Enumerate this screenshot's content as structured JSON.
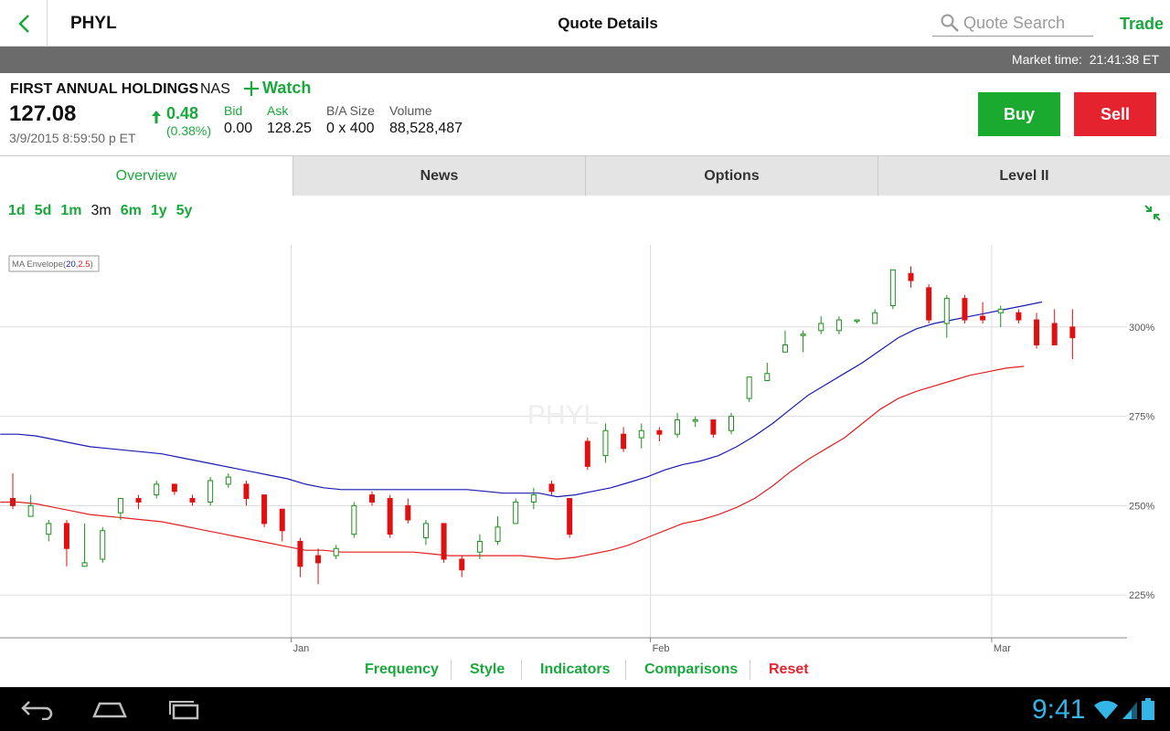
{
  "topbar": {
    "symbol": "PHYL",
    "title": "Quote Details",
    "search_placeholder": "Quote Search",
    "trade_label": "Trade"
  },
  "market": {
    "label": "Market time:",
    "time": "21:41:38 ET"
  },
  "quote": {
    "company": "FIRST ANNUAL HOLDINGS",
    "exchange": "NAS",
    "watch_label": "Watch",
    "last": "127.08",
    "timestamp": "3/9/2015 8:59:50 p ET",
    "change": "0.48",
    "change_pct": "(0.38%)",
    "bid_label": "Bid",
    "bid": "0.00",
    "ask_label": "Ask",
    "ask": "128.25",
    "ba_size_label": "B/A Size",
    "ba_size": "0 x 400",
    "volume_label": "Volume",
    "volume": "88,528,487",
    "buy_label": "Buy",
    "sell_label": "Sell"
  },
  "tabs": [
    {
      "label": "Overview",
      "active": true
    },
    {
      "label": "News",
      "active": false
    },
    {
      "label": "Options",
      "active": false
    },
    {
      "label": "Level II",
      "active": false
    }
  ],
  "ranges": [
    {
      "label": "1d",
      "selected": false
    },
    {
      "label": "5d",
      "selected": false
    },
    {
      "label": "1m",
      "selected": false
    },
    {
      "label": "3m",
      "selected": true
    },
    {
      "label": "6m",
      "selected": false
    },
    {
      "label": "1y",
      "selected": false
    },
    {
      "label": "5y",
      "selected": false
    }
  ],
  "chart_data": {
    "type": "candlestick",
    "watermark": "PHYL",
    "indicator_label": "MA Envelope(",
    "indicator_p1": "20",
    "indicator_comma": ",",
    "indicator_p2": "2.5",
    "indicator_close": ")",
    "y_ticks": [
      "300%",
      "275%",
      "250%",
      "225%"
    ],
    "y_tick_values": [
      300,
      275,
      250,
      225
    ],
    "ylim": [
      213,
      323
    ],
    "x_ticks": [
      {
        "label": "Jan",
        "index": 15.5
      },
      {
        "label": "Feb",
        "index": 35.5
      },
      {
        "label": "Mar",
        "index": 54.5
      }
    ],
    "candles": [
      [
        252,
        250,
        259,
        249
      ],
      [
        247,
        250,
        253,
        247
      ],
      [
        242,
        245,
        246,
        240
      ],
      [
        245,
        238,
        246,
        233
      ],
      [
        233,
        234,
        245,
        233
      ],
      [
        235,
        243,
        244,
        234
      ],
      [
        248,
        252,
        252,
        246
      ],
      [
        252,
        251,
        253,
        249
      ],
      [
        253,
        256,
        257,
        252
      ],
      [
        256,
        254,
        256,
        253
      ],
      [
        252,
        251,
        253,
        250
      ],
      [
        251,
        257,
        258,
        250
      ],
      [
        256,
        258,
        259,
        255
      ],
      [
        256,
        252,
        257,
        250
      ],
      [
        253,
        245,
        253,
        244
      ],
      [
        249,
        243,
        249,
        240
      ],
      [
        240,
        233,
        241,
        230
      ],
      [
        236,
        234,
        238,
        228
      ],
      [
        236,
        238,
        239,
        235
      ],
      [
        242,
        250,
        251,
        241
      ],
      [
        253,
        251,
        254,
        250
      ],
      [
        252,
        242,
        253,
        241
      ],
      [
        250,
        246,
        252,
        245
      ],
      [
        241,
        245,
        246,
        239
      ],
      [
        245,
        235,
        245,
        234
      ],
      [
        235,
        232,
        236,
        230
      ],
      [
        237,
        240,
        242,
        235
      ],
      [
        240,
        244,
        247,
        239
      ],
      [
        245,
        251,
        252,
        245
      ],
      [
        251,
        253,
        255,
        249
      ],
      [
        256,
        254,
        257,
        253
      ],
      [
        252,
        242,
        252,
        241
      ],
      [
        268,
        261,
        269,
        260
      ],
      [
        264,
        271,
        273,
        262
      ],
      [
        270,
        266,
        272,
        265
      ],
      [
        269,
        271,
        273,
        266
      ],
      [
        271,
        270,
        272,
        268
      ],
      [
        270,
        274,
        276,
        269
      ],
      [
        274,
        274,
        275,
        272
      ],
      [
        274,
        270,
        274,
        269
      ],
      [
        271,
        275,
        276,
        270
      ],
      [
        280,
        286,
        286,
        279
      ],
      [
        285,
        287,
        290,
        285
      ],
      [
        293,
        295,
        299,
        293
      ],
      [
        298,
        298,
        299,
        293
      ],
      [
        299,
        301,
        303,
        298
      ],
      [
        299,
        302,
        303,
        298
      ],
      [
        302,
        302,
        302,
        301
      ],
      [
        301,
        304,
        305,
        301
      ],
      [
        306,
        316,
        316,
        305
      ],
      [
        315,
        313,
        317,
        311
      ],
      [
        311,
        302,
        312,
        301
      ],
      [
        301,
        308,
        309,
        297
      ],
      [
        308,
        302,
        309,
        301
      ],
      [
        303,
        302,
        307,
        301
      ],
      [
        304,
        305,
        306,
        300
      ],
      [
        304,
        302,
        305,
        301
      ],
      [
        302,
        295,
        304,
        294
      ],
      [
        301,
        295,
        305,
        295
      ],
      [
        300,
        297,
        305,
        291
      ]
    ],
    "upper_envelope": [
      270,
      270,
      269.5,
      268.5,
      267.5,
      266.5,
      266,
      265.5,
      265,
      264.5,
      263.5,
      262.5,
      261.5,
      260.5,
      259.5,
      258.5,
      257.5,
      256,
      255,
      254.5,
      254.5,
      254.5,
      254.5,
      254.5,
      254.5,
      254.5,
      254.5,
      254,
      253.5,
      253.5,
      253.5,
      252.5,
      253,
      254,
      255,
      256.5,
      258,
      260,
      261.5,
      262.5,
      264,
      266.5,
      269.5,
      273,
      277,
      281,
      284,
      287,
      290,
      293.5,
      297,
      299.5,
      301,
      302,
      303,
      304,
      305,
      306,
      307
    ],
    "lower_envelope": [
      251,
      251,
      250.5,
      249.5,
      248.5,
      247.5,
      247,
      246.5,
      246,
      245.5,
      244.5,
      243.5,
      242.5,
      241.5,
      240.5,
      239.5,
      238.5,
      237.5,
      237.5,
      237,
      237,
      237,
      237,
      237,
      236.5,
      236,
      236,
      236,
      236,
      236,
      235.5,
      235,
      235.5,
      236.5,
      237.5,
      239,
      241,
      243,
      245,
      246,
      247.5,
      249.5,
      252,
      255.5,
      259.5,
      263,
      266,
      269,
      273,
      277,
      280,
      282,
      283.5,
      285,
      286.5,
      287.5,
      288.5,
      289
    ]
  },
  "bottom_links": [
    {
      "label": "Frequency"
    },
    {
      "label": "Style"
    },
    {
      "label": "Indicators"
    },
    {
      "label": "Comparisons"
    },
    {
      "label": "Reset"
    }
  ],
  "system": {
    "clock": "9:41"
  },
  "colors": {
    "accent_green": "#19a83b",
    "sell_red": "#e5232f",
    "upper_env": "#1a1ab0",
    "lower_env": "#e02020"
  }
}
